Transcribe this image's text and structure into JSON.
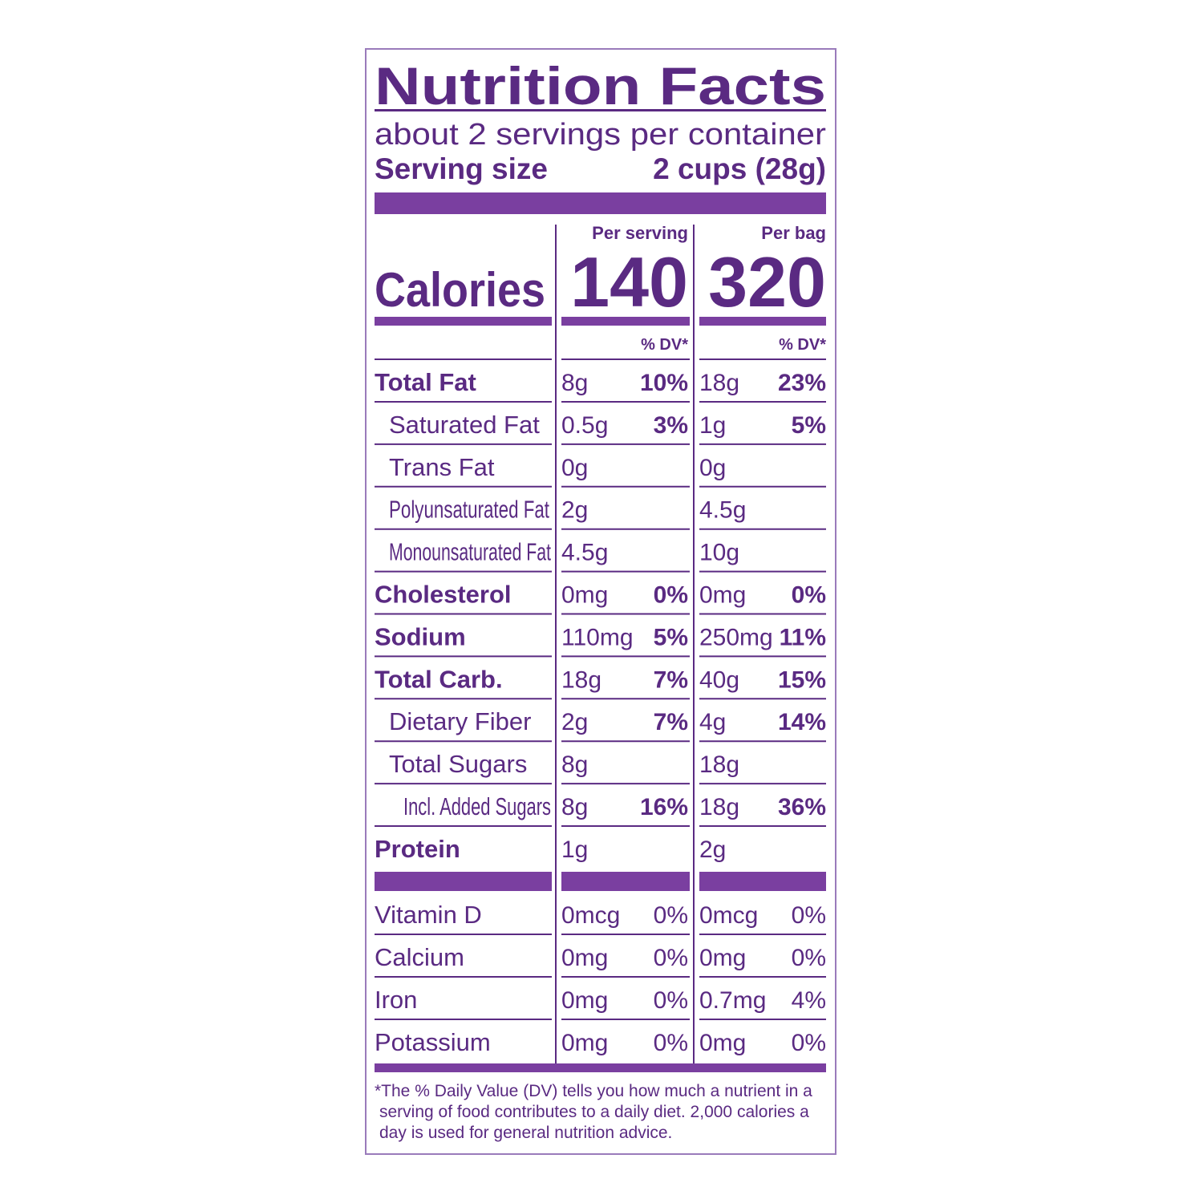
{
  "label": {
    "title": "Nutrition Facts",
    "servings": "about 2 servings per container",
    "serving_size_label": "Serving size",
    "serving_size_value": "2 cups (28g)",
    "column_headers": [
      "Per serving",
      "Per bag"
    ],
    "calories_label": "Calories",
    "calories": [
      "140",
      "320"
    ],
    "dv_headers": [
      "% DV*",
      "% DV*"
    ],
    "nutrients": [
      {
        "name": "Total Fat",
        "serving_amount": "8g",
        "serving_dv": "10%",
        "bag_amount": "18g",
        "bag_dv": "23%"
      },
      {
        "name": "Saturated Fat",
        "serving_amount": "0.5g",
        "serving_dv": "3%",
        "bag_amount": "1g",
        "bag_dv": "5%"
      },
      {
        "name": "Trans Fat",
        "serving_amount": "0g",
        "bag_amount": "0g"
      },
      {
        "name": "Polyunsaturated Fat",
        "serving_amount": "2g",
        "bag_amount": "4.5g"
      },
      {
        "name": "Monounsaturated Fat",
        "serving_amount": "4.5g",
        "bag_amount": "10g"
      },
      {
        "name": "Cholesterol",
        "serving_amount": "0mg",
        "serving_dv": "0%",
        "bag_amount": "0mg",
        "bag_dv": "0%"
      },
      {
        "name": "Sodium",
        "serving_amount": "110mg",
        "serving_dv": "5%",
        "bag_amount": "250mg",
        "bag_dv": "11%"
      },
      {
        "name": "Total Carb.",
        "serving_amount": "18g",
        "serving_dv": "7%",
        "bag_amount": "40g",
        "bag_dv": "15%"
      },
      {
        "name": "Dietary Fiber",
        "serving_amount": "2g",
        "serving_dv": "7%",
        "bag_amount": "4g",
        "bag_dv": "14%"
      },
      {
        "name": "Total Sugars",
        "serving_amount": "8g",
        "bag_amount": "18g"
      },
      {
        "name": "Incl. Added Sugars",
        "serving_amount": "8g",
        "serving_dv": "16%",
        "bag_amount": "18g",
        "bag_dv": "36%"
      },
      {
        "name": "Protein",
        "serving_amount": "1g",
        "bag_amount": "2g"
      }
    ],
    "vitamins": [
      {
        "name": "Vitamin D",
        "serving_amount": "0mcg",
        "serving_dv": "0%",
        "bag_amount": "0mcg",
        "bag_dv": "0%"
      },
      {
        "name": "Calcium",
        "serving_amount": "0mg",
        "serving_dv": "0%",
        "bag_amount": "0mg",
        "bag_dv": "0%"
      },
      {
        "name": "Iron",
        "serving_amount": "0mg",
        "serving_dv": "0%",
        "bag_amount": "0.7mg",
        "bag_dv": "4%"
      },
      {
        "name": "Potassium",
        "serving_amount": "0mg",
        "serving_dv": "0%",
        "bag_amount": "0mg",
        "bag_dv": "0%"
      }
    ],
    "footnote": [
      "*The % Daily Value (DV) tells you how much a nutrient in a",
      "serving of food contributes to a daily diet. 2,000 calories a",
      "day is used for general nutrition advice."
    ]
  }
}
